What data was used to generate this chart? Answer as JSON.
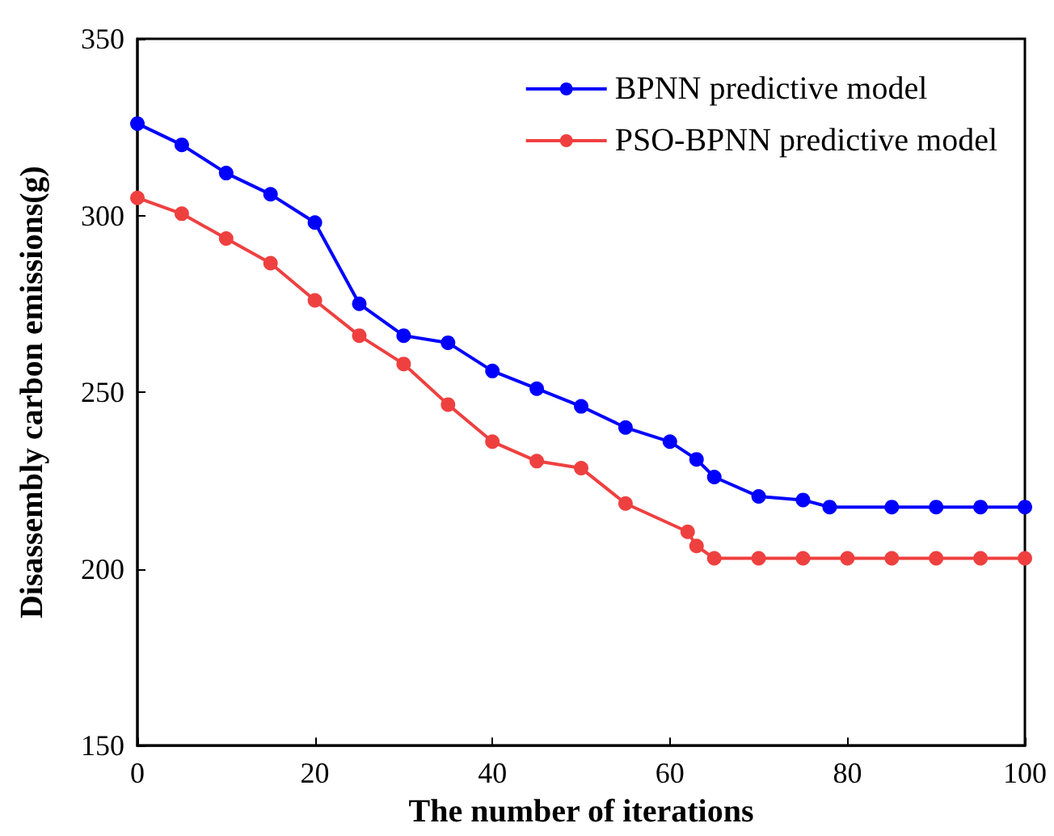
{
  "chart_data": {
    "type": "line",
    "xlabel": "The number of iterations",
    "ylabel": "Disassembly carbon emissions(g)",
    "xlim": [
      0,
      100
    ],
    "xticks": [
      0,
      20,
      40,
      60,
      80,
      100
    ],
    "ylim": [
      150,
      350
    ],
    "yticks": [
      150,
      200,
      250,
      300,
      350
    ],
    "grid": false,
    "legend": "top right",
    "marker": "circle",
    "line_style": "solid",
    "series": [
      {
        "name": "BPNN predictive model",
        "color": "#0000ff",
        "x": [
          0,
          5,
          10,
          15,
          20,
          25,
          30,
          35,
          40,
          45,
          50,
          55,
          60,
          63,
          65,
          70,
          75,
          78,
          85,
          90,
          95,
          100
        ],
        "values": [
          326,
          320,
          312,
          306,
          298,
          275,
          266,
          264,
          256,
          251,
          246,
          240,
          236,
          231,
          226,
          220.5,
          219.5,
          217.5,
          217.5,
          217.5,
          217.5,
          217.5
        ]
      },
      {
        "name": "PSO-BPNN predictive model",
        "color": "#ef4040",
        "x": [
          0,
          5,
          10,
          15,
          20,
          25,
          30,
          35,
          40,
          45,
          50,
          55,
          62,
          63,
          65,
          70,
          75,
          80,
          85,
          90,
          95,
          100
        ],
        "values": [
          305,
          300.5,
          293.5,
          286.5,
          276,
          266,
          258,
          246.5,
          236,
          230.5,
          228.5,
          218.5,
          210.5,
          206.5,
          203,
          203,
          203,
          203,
          203,
          203,
          203,
          203
        ]
      }
    ]
  }
}
